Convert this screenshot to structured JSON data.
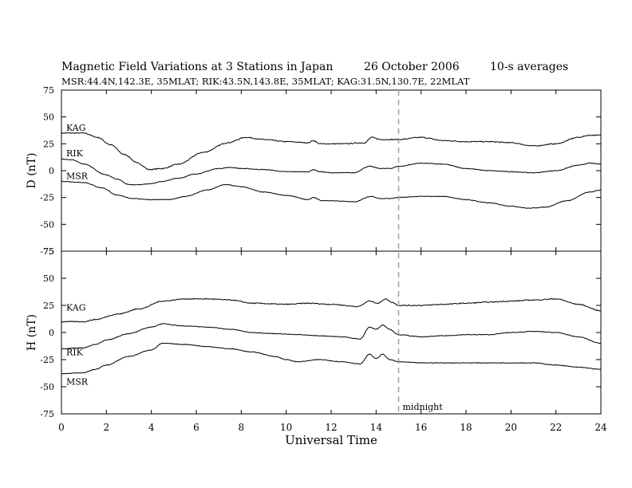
{
  "header": {
    "title": "Magnetic Field Variations at 3 Stations in Japan",
    "date": "26 October 2006",
    "averaging": "10-s averages",
    "stations_line": "MSR:44.4N,142.3E, 35MLAT;   RIK:43.5N,143.8E, 35MLAT;   KAG:31.5N,130.7E, 22MLAT"
  },
  "chart_data": {
    "type": "line",
    "xlabel": "Universal Time",
    "xlim": [
      0,
      24
    ],
    "xticks": [
      0,
      2,
      4,
      6,
      8,
      10,
      12,
      14,
      16,
      18,
      20,
      22,
      24
    ],
    "annotation": {
      "text": "midnight",
      "x": 15
    },
    "panels": [
      {
        "id": "D",
        "ylabel": "D (nT)",
        "ylim": [
          -75,
          75
        ],
        "yticks": [
          75,
          50,
          25,
          0,
          -25,
          -50,
          -75
        ],
        "series": [
          {
            "name": "KAG",
            "x": [
              0,
              1,
              1.6,
              2.2,
              2.8,
              3.4,
              3.9,
              4.5,
              5.2,
              6.3,
              7.4,
              8.2,
              9,
              10,
              11,
              11.2,
              11.5,
              12.5,
              13.5,
              13.8,
              14.2,
              14.6,
              15,
              16,
              17,
              18,
              19,
              20,
              21,
              22,
              23,
              23.5,
              24
            ],
            "y": [
              35,
              35,
              31,
              24,
              15,
              7,
              1,
              2,
              6,
              17,
              26,
              31,
              29,
              27,
              26,
              28,
              25,
              25,
              26,
              31,
              29,
              29,
              29,
              31,
              28,
              27,
              27,
              26,
              23,
              25,
              31,
              33,
              33
            ]
          },
          {
            "name": "RIK",
            "x": [
              0,
              0.5,
              1,
              2,
              2.5,
              3,
              3.5,
              4,
              4.5,
              5.2,
              6,
              7,
              7.5,
              8,
              9,
              10,
              11,
              11.2,
              11.5,
              12,
              13,
              13.7,
              14.2,
              14.6,
              15,
              16,
              17,
              18,
              19,
              20,
              21,
              22,
              23,
              23.5,
              24
            ],
            "y": [
              11,
              10,
              6,
              -4,
              -8,
              -13,
              -13,
              -12,
              -10,
              -7,
              -3,
              2,
              3,
              2,
              1,
              -1,
              -1,
              1,
              -1,
              -2,
              -2,
              4,
              2,
              2,
              4,
              7,
              6,
              2,
              0,
              -1,
              -2,
              0,
              5,
              7,
              6
            ]
          },
          {
            "name": "MSR",
            "x": [
              0,
              1,
              1.8,
              2.5,
              3.2,
              4,
              4.8,
              5.5,
              6.5,
              7.3,
              8,
              9,
              10,
              11,
              11.2,
              11.6,
              12,
              13,
              13.8,
              14.2,
              14.6,
              15,
              16,
              17,
              18,
              19,
              20,
              20.8,
              21.5,
              22.5,
              23.5,
              24
            ],
            "y": [
              -10,
              -11,
              -16,
              -23,
              -26,
              -27,
              -27,
              -24,
              -18,
              -13,
              -15,
              -20,
              -23,
              -27,
              -25,
              -28,
              -28,
              -29,
              -24,
              -26,
              -26,
              -25,
              -24,
              -24,
              -27,
              -30,
              -33,
              -35,
              -34,
              -28,
              -20,
              -18
            ]
          }
        ]
      },
      {
        "id": "H",
        "ylabel": "H (nT)",
        "ylim": [
          -75,
          75
        ],
        "yticks": [
          75,
          50,
          25,
          0,
          -25,
          -50,
          -75
        ],
        "series": [
          {
            "name": "KAG",
            "x": [
              0,
              1,
              1.5,
              2.5,
              3.5,
              4.5,
              5.5,
              6.5,
              7.5,
              8.5,
              10,
              11,
              12,
              13.2,
              13.7,
              14.1,
              14.4,
              14.7,
              15,
              16,
              17,
              18,
              19,
              20,
              21,
              22,
              23,
              24
            ],
            "y": [
              10,
              10,
              12,
              17,
              22,
              29,
              31,
              31,
              30,
              27,
              26,
              27,
              26,
              24,
              29,
              27,
              31,
              28,
              25,
              25,
              26,
              27,
              28,
              29,
              30,
              31,
              26,
              20
            ]
          },
          {
            "name": "RIK",
            "x": [
              0,
              1,
              1.5,
              2,
              3,
              4,
              4.5,
              5.5,
              6.5,
              7.5,
              8.5,
              9.5,
              10.5,
              11.5,
              12.5,
              13.3,
              13.7,
              14,
              14.3,
              14.6,
              15,
              16,
              17,
              18,
              19,
              20,
              21,
              22,
              23,
              24
            ],
            "y": [
              -15,
              -14,
              -11,
              -7,
              -1,
              5,
              8,
              6,
              5,
              3,
              0,
              -1,
              -2,
              -3,
              -4,
              -6,
              5,
              3,
              7,
              3,
              -2,
              -4,
              -3,
              -2,
              -2,
              0,
              1,
              0,
              -4,
              -10
            ]
          },
          {
            "name": "MSR",
            "x": [
              0,
              1,
              1.5,
              2,
              3,
              4,
              4.5,
              5.5,
              6.5,
              7.5,
              8.5,
              9.5,
              10,
              10.5,
              11.5,
              12.5,
              13.3,
              13.7,
              14,
              14.3,
              14.6,
              15,
              16,
              17,
              18,
              19,
              20,
              21,
              22,
              23,
              24
            ],
            "y": [
              -38,
              -37,
              -34,
              -30,
              -22,
              -16,
              -10,
              -11,
              -13,
              -15,
              -18,
              -22,
              -25,
              -27,
              -25,
              -27,
              -29,
              -20,
              -24,
              -20,
              -25,
              -27,
              -28,
              -28,
              -28,
              -28,
              -28,
              -28,
              -30,
              -32,
              -34
            ]
          }
        ]
      }
    ]
  }
}
